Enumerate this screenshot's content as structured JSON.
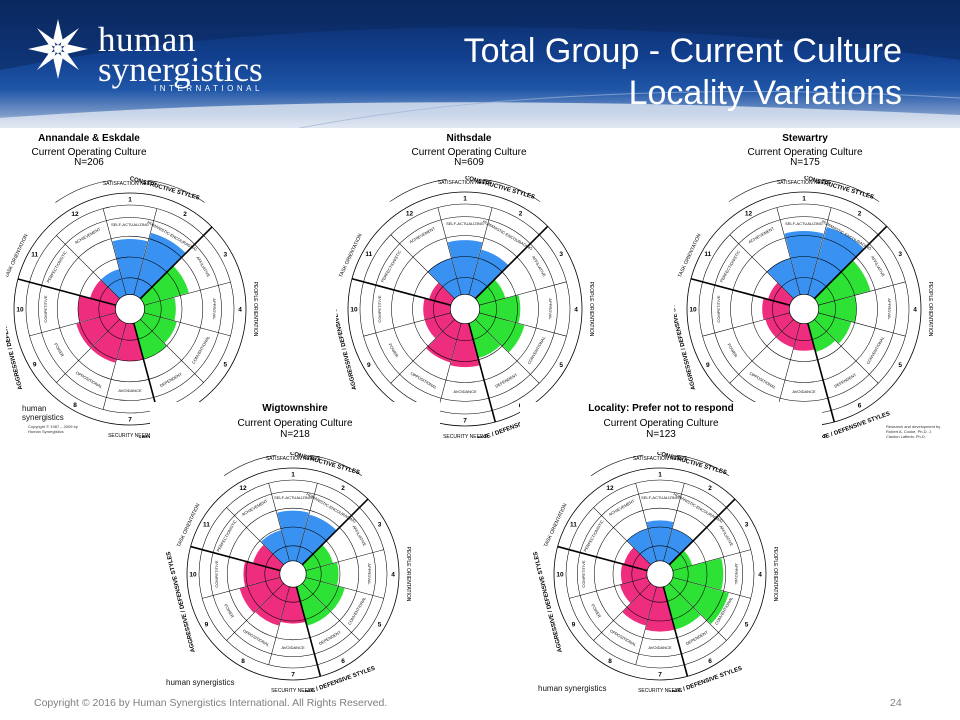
{
  "header": {
    "logo_line1": "human",
    "logo_line2": "synergistics",
    "logo_line3": "INTERNATIONAL",
    "title_line1": "Total Group - Current Culture",
    "title_line2": "Locality Variations"
  },
  "circumplex_labels": {
    "satisfaction": "SATISFACTION NEEDS",
    "security": "SECURITY NEEDS",
    "constructive": "CONSTRUCTIVE STYLES",
    "passive": "PASSIVE / DEFENSIVE STYLES",
    "aggressive": "AGGRESSIVE / DEFENSIVE STYLES",
    "people": "PEOPLE ORIENTATION",
    "task": "TASK ORIENTATION",
    "styles": [
      "SELF-ACTUALIZING",
      "HUMANISTIC-ENCOURAGING",
      "AFFILIATIVE",
      "APPROVAL",
      "CONVENTIONAL",
      "DEPENDENT",
      "AVOIDANCE",
      "OPPOSITIONAL",
      "POWER",
      "COMPETITIVE",
      "PERFECTIONISTIC",
      "ACHIEVEMENT"
    ],
    "numbers": [
      "1",
      "2",
      "3",
      "4",
      "5",
      "6",
      "7",
      "8",
      "9",
      "10",
      "11",
      "12"
    ]
  },
  "panels": [
    {
      "name": "Annandale & Eskdale",
      "subtitle": "Current Operating Culture",
      "n": "N=206",
      "values": [
        0.62,
        0.72,
        0.52,
        0.35,
        0.38,
        0.42,
        0.42,
        0.46,
        0.46,
        0.42,
        0.3,
        0.3
      ]
    },
    {
      "name": "Nithsdale",
      "subtitle": "Current Operating Culture",
      "n": "N=609",
      "values": [
        0.6,
        0.52,
        0.3,
        0.45,
        0.52,
        0.4,
        0.48,
        0.45,
        0.3,
        0.3,
        0.25,
        0.42
      ]
    },
    {
      "name": "Stewartry",
      "subtitle": "Current Operating Culture",
      "n": "N=175",
      "values": [
        0.7,
        0.78,
        0.6,
        0.42,
        0.38,
        0.33,
        0.3,
        0.28,
        0.28,
        0.3,
        0.25,
        0.42
      ]
    },
    {
      "name": "Wigtownshire",
      "subtitle": "Current Operating Culture",
      "n": "N=218",
      "values": [
        0.62,
        0.6,
        0.35,
        0.4,
        0.5,
        0.5,
        0.45,
        0.5,
        0.52,
        0.45,
        0.35,
        0.4
      ]
    },
    {
      "name": "Locality: Prefer not to respond",
      "subtitle": "Current Operating Culture",
      "n": "N=123",
      "values": [
        0.5,
        0.42,
        0.25,
        0.62,
        0.72,
        0.55,
        0.55,
        0.5,
        0.35,
        0.32,
        0.3,
        0.42
      ]
    }
  ],
  "mini_logo": "human synergistics",
  "copyright_small": "Copyright © 1987 – 2009 by Human Synergistics",
  "research_small": "Research and development by Robert A. Cooke, Ph.D. J. Clayton Lafferty, Ph.D.",
  "colors": {
    "constructive": "#2e8bf0",
    "passive": "#22e02a",
    "aggressive": "#ee2277"
  },
  "footer": {
    "copyright": "Copyright © 2016 by Human Synergistics International. All Rights Reserved.",
    "page": "24"
  }
}
